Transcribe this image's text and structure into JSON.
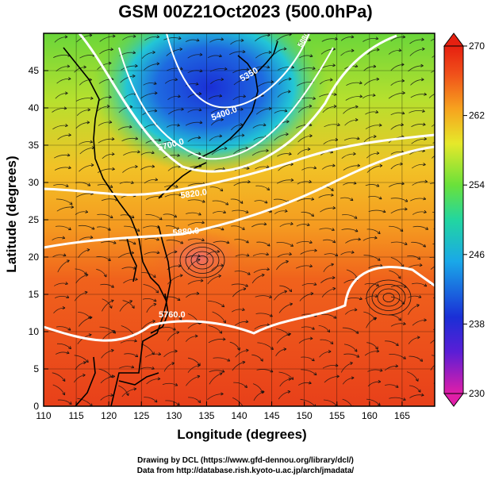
{
  "title": "GSM 00Z21Oct2023 (500.0hPa)",
  "axes": {
    "xlabel": "Longitude (degrees)",
    "ylabel": "Latitude  (degrees)",
    "xticks": [
      "110",
      "115",
      "120",
      "125",
      "130",
      "135",
      "140",
      "145",
      "150",
      "155",
      "160",
      "165"
    ],
    "yticks": [
      "0",
      "5",
      "10",
      "15",
      "20",
      "25",
      "30",
      "35",
      "40",
      "45"
    ],
    "xlim": [
      110,
      170
    ],
    "ylim": [
      0,
      50
    ]
  },
  "colorbar": {
    "ticks": [
      "270",
      "262",
      "254",
      "246",
      "238",
      "230"
    ],
    "range": [
      230,
      270
    ],
    "colors": [
      "#e01ea8",
      "#1a2fd6",
      "#1aa8e8",
      "#22d6c0",
      "#6ae13a",
      "#e6e82a",
      "#f7a21e",
      "#f0501a",
      "#e62010"
    ]
  },
  "contour_labels": {
    "c5350": "5350",
    "c5400": "5400.0",
    "c5700": "5700.0",
    "c5820": "5820.0",
    "c5760": "5760.0",
    "c5880": "5880.0",
    "c5880b": "5880"
  },
  "credits": {
    "line1": "Drawing by DCL (https://www.gfd-dennou.org/library/dcl/)",
    "line2": "Data from http://database.rish.kyoto-u.ac.jp/arch/jmadata/"
  },
  "chart_data": {
    "type": "heatmap",
    "title": "GSM 00Z21Oct2023 (500.0hPa)",
    "xlabel": "Longitude (degrees)",
    "ylabel": "Latitude  (degrees)",
    "xlim": [
      110,
      170
    ],
    "ylim": [
      0,
      50
    ],
    "colorbar_range": [
      230,
      270
    ],
    "colorbar_ticks": [
      230,
      238,
      246,
      254,
      262,
      270
    ],
    "contour_labels": [
      "5350",
      "5400.0",
      "5700.0",
      "5760.0",
      "5820.0",
      "5880.0"
    ],
    "grid": true
  }
}
